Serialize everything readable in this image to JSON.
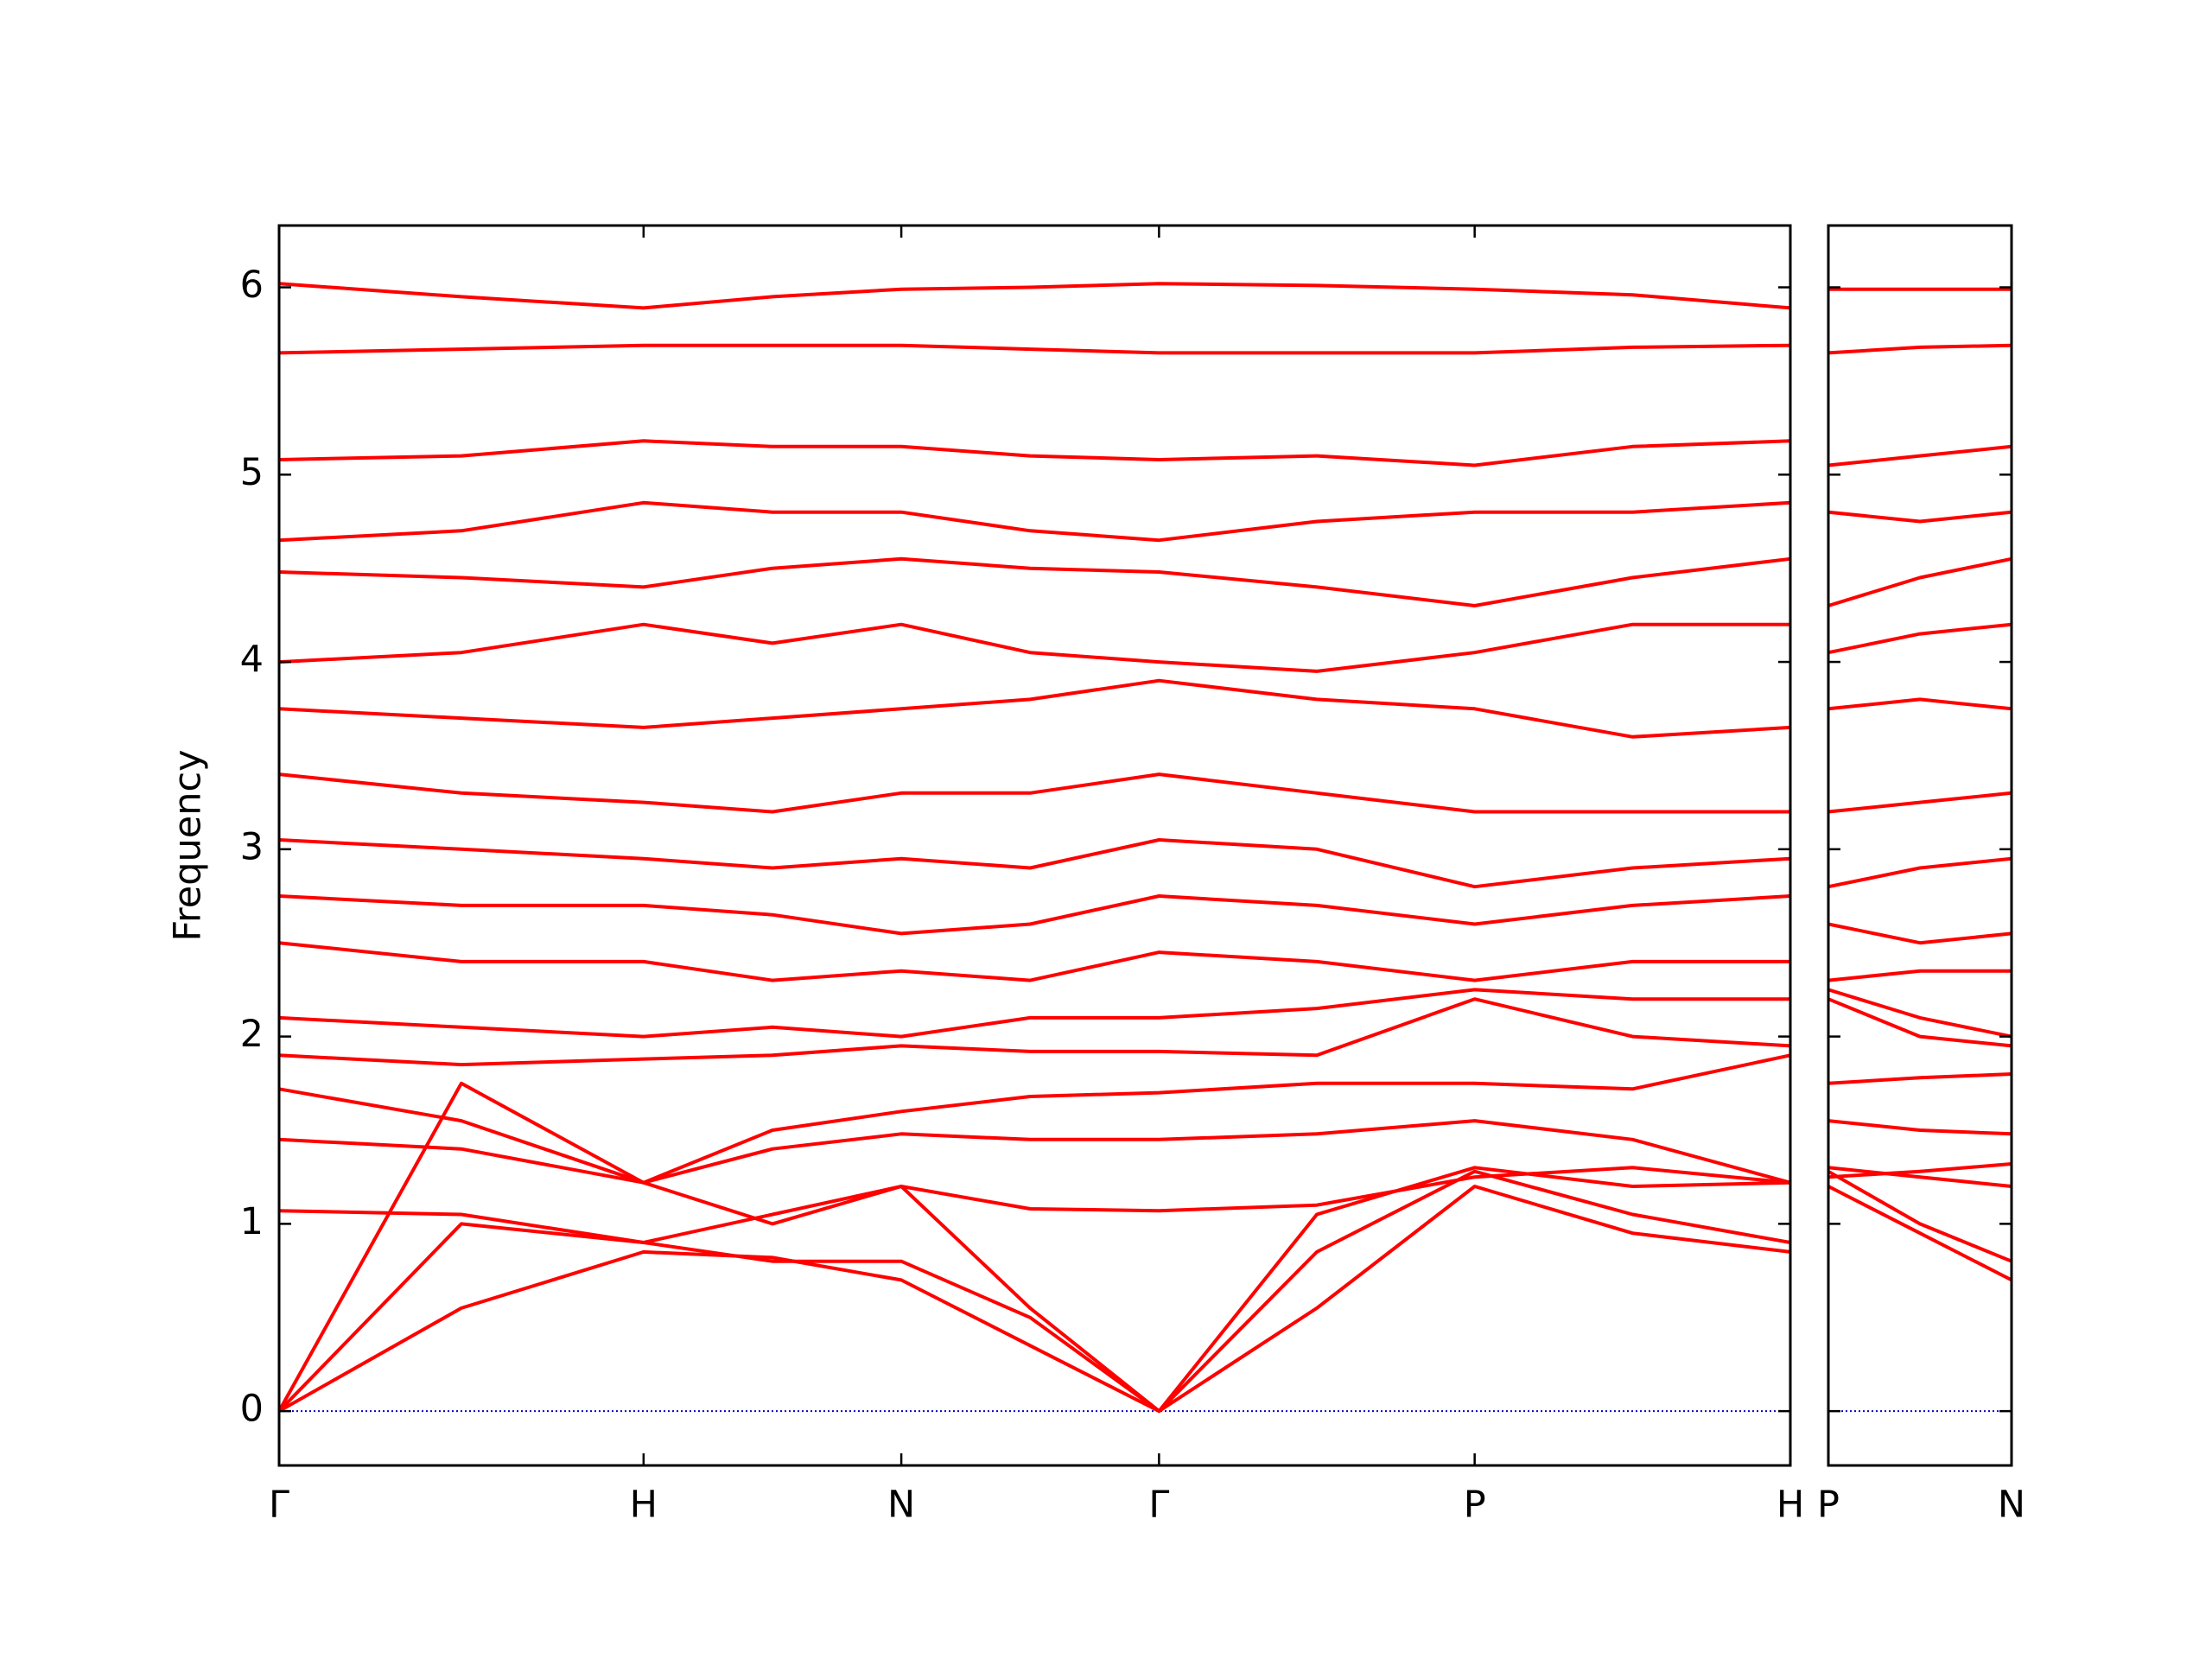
{
  "chart_data": [
    {
      "type": "line",
      "ylabel": "Frequency",
      "color": "#ff0000",
      "zero_line_color": "#0000cc",
      "x": [
        0,
        0.5,
        1,
        1.3536,
        1.7071,
        2.0607,
        2.4142,
        2.8472,
        3.2802,
        3.7133,
        4.1463
      ],
      "xlim": [
        0,
        4.1463
      ],
      "xticks": [
        {
          "value": 0,
          "label": "Γ"
        },
        {
          "value": 1,
          "label": "H"
        },
        {
          "value": 1.7071,
          "label": "N"
        },
        {
          "value": 2.4142,
          "label": "Γ"
        },
        {
          "value": 3.2802,
          "label": "P"
        },
        {
          "value": 4.1463,
          "label": "H"
        }
      ],
      "ylim": [
        -0.29,
        6.33
      ],
      "yticks": [
        0,
        1,
        2,
        3,
        4,
        5,
        6
      ],
      "series": [
        {
          "values": [
            0,
            0.55,
            0.85,
            0.82,
            0.7,
            0.35,
            0,
            0.55,
            1.2,
            0.95,
            0.85
          ]
        },
        {
          "values": [
            0,
            1.0,
            0.9,
            0.8,
            0.8,
            0.5,
            0,
            0.85,
            1.28,
            1.05,
            0.9
          ]
        },
        {
          "values": [
            0,
            1.75,
            1.22,
            1.0,
            1.2,
            0.55,
            0,
            1.05,
            1.3,
            1.2,
            1.22
          ]
        },
        {
          "values": [
            1.07,
            1.05,
            0.9,
            1.05,
            1.2,
            1.08,
            1.07,
            1.1,
            1.25,
            1.3,
            1.22
          ]
        },
        {
          "values": [
            1.45,
            1.4,
            1.22,
            1.4,
            1.48,
            1.45,
            1.45,
            1.48,
            1.55,
            1.45,
            1.22
          ]
        },
        {
          "values": [
            1.72,
            1.55,
            1.22,
            1.5,
            1.6,
            1.68,
            1.7,
            1.75,
            1.75,
            1.72,
            1.9
          ]
        },
        {
          "values": [
            1.9,
            1.85,
            1.88,
            1.9,
            1.95,
            1.92,
            1.92,
            1.9,
            2.2,
            2.0,
            1.95
          ]
        },
        {
          "values": [
            2.1,
            2.05,
            2.0,
            2.05,
            2.0,
            2.1,
            2.1,
            2.15,
            2.25,
            2.2,
            2.2
          ]
        },
        {
          "values": [
            2.5,
            2.4,
            2.4,
            2.3,
            2.35,
            2.3,
            2.45,
            2.4,
            2.3,
            2.4,
            2.4
          ]
        },
        {
          "values": [
            2.75,
            2.7,
            2.7,
            2.65,
            2.55,
            2.6,
            2.75,
            2.7,
            2.6,
            2.7,
            2.75
          ]
        },
        {
          "values": [
            3.05,
            3.0,
            2.95,
            2.9,
            2.95,
            2.9,
            3.05,
            3.0,
            2.8,
            2.9,
            2.95
          ]
        },
        {
          "values": [
            3.4,
            3.3,
            3.25,
            3.2,
            3.3,
            3.3,
            3.4,
            3.3,
            3.2,
            3.2,
            3.2
          ]
        },
        {
          "values": [
            3.75,
            3.7,
            3.65,
            3.7,
            3.75,
            3.8,
            3.9,
            3.8,
            3.75,
            3.6,
            3.65
          ]
        },
        {
          "values": [
            4.0,
            4.05,
            4.2,
            4.1,
            4.2,
            4.05,
            4.0,
            3.95,
            4.05,
            4.2,
            4.2
          ]
        },
        {
          "values": [
            4.48,
            4.45,
            4.4,
            4.5,
            4.55,
            4.5,
            4.48,
            4.4,
            4.3,
            4.45,
            4.55
          ]
        },
        {
          "values": [
            4.65,
            4.7,
            4.85,
            4.8,
            4.8,
            4.7,
            4.65,
            4.75,
            4.8,
            4.8,
            4.85
          ]
        },
        {
          "values": [
            5.08,
            5.1,
            5.18,
            5.15,
            5.15,
            5.1,
            5.08,
            5.1,
            5.05,
            5.15,
            5.18
          ]
        },
        {
          "values": [
            5.65,
            5.67,
            5.69,
            5.69,
            5.69,
            5.67,
            5.65,
            5.65,
            5.65,
            5.68,
            5.69
          ]
        },
        {
          "values": [
            6.02,
            5.95,
            5.89,
            5.95,
            5.99,
            6.0,
            6.02,
            6.01,
            5.99,
            5.96,
            5.89
          ]
        }
      ]
    },
    {
      "type": "line",
      "color": "#ff0000",
      "zero_line_color": "#0000cc",
      "x": [
        0,
        0.25,
        0.5
      ],
      "xlim": [
        0,
        0.5
      ],
      "xticks": [
        {
          "value": 0,
          "label": "P"
        },
        {
          "value": 0.5,
          "label": "N"
        }
      ],
      "ylim": [
        -0.29,
        6.33
      ],
      "yticks": [
        0,
        1,
        2,
        3,
        4,
        5,
        6
      ],
      "series": [
        {
          "values": [
            1.2,
            0.95,
            0.7
          ]
        },
        {
          "values": [
            1.28,
            1.0,
            0.8
          ]
        },
        {
          "values": [
            1.3,
            1.25,
            1.2
          ]
        },
        {
          "values": [
            1.25,
            1.28,
            1.32
          ]
        },
        {
          "values": [
            1.55,
            1.5,
            1.48
          ]
        },
        {
          "values": [
            1.75,
            1.78,
            1.8
          ]
        },
        {
          "values": [
            2.2,
            2.0,
            1.95
          ]
        },
        {
          "values": [
            2.25,
            2.1,
            2.0
          ]
        },
        {
          "values": [
            2.3,
            2.35,
            2.35
          ]
        },
        {
          "values": [
            2.6,
            2.5,
            2.55
          ]
        },
        {
          "values": [
            2.8,
            2.9,
            2.95
          ]
        },
        {
          "values": [
            3.2,
            3.25,
            3.3
          ]
        },
        {
          "values": [
            3.75,
            3.8,
            3.75
          ]
        },
        {
          "values": [
            4.05,
            4.15,
            4.2
          ]
        },
        {
          "values": [
            4.3,
            4.45,
            4.55
          ]
        },
        {
          "values": [
            4.8,
            4.75,
            4.8
          ]
        },
        {
          "values": [
            5.05,
            5.1,
            5.15
          ]
        },
        {
          "values": [
            5.65,
            5.68,
            5.69
          ]
        },
        {
          "values": [
            5.99,
            5.99,
            5.99
          ]
        }
      ]
    }
  ]
}
